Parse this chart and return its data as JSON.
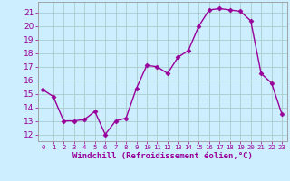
{
  "x": [
    0,
    1,
    2,
    3,
    4,
    5,
    6,
    7,
    8,
    9,
    10,
    11,
    12,
    13,
    14,
    15,
    16,
    17,
    18,
    19,
    20,
    21,
    22,
    23
  ],
  "y": [
    15.3,
    14.8,
    13.0,
    13.0,
    13.1,
    13.7,
    12.0,
    13.0,
    13.2,
    15.4,
    17.1,
    17.0,
    16.5,
    17.7,
    18.2,
    20.0,
    21.2,
    21.3,
    21.2,
    21.1,
    20.4,
    16.5,
    15.8,
    13.5
  ],
  "line_color": "#990099",
  "marker": "D",
  "markersize": 2.5,
  "linewidth": 1.0,
  "bg_color": "#cceeff",
  "grid_color": "#aacccc",
  "xlabel": "Windchill (Refroidissement éolien,°C)",
  "ylabel": "",
  "xlim": [
    -0.5,
    23.5
  ],
  "ylim": [
    11.5,
    21.8
  ],
  "yticks": [
    12,
    13,
    14,
    15,
    16,
    17,
    18,
    19,
    20,
    21
  ],
  "xticks": [
    0,
    1,
    2,
    3,
    4,
    5,
    6,
    7,
    8,
    9,
    10,
    11,
    12,
    13,
    14,
    15,
    16,
    17,
    18,
    19,
    20,
    21,
    22,
    23
  ],
  "tick_color": "#990099",
  "label_color": "#990099",
  "axis_color": "#999999",
  "font_size": 6.0,
  "xlabel_fontsize": 6.5,
  "ytick_fontsize": 6.5,
  "xtick_fontsize": 5.2
}
